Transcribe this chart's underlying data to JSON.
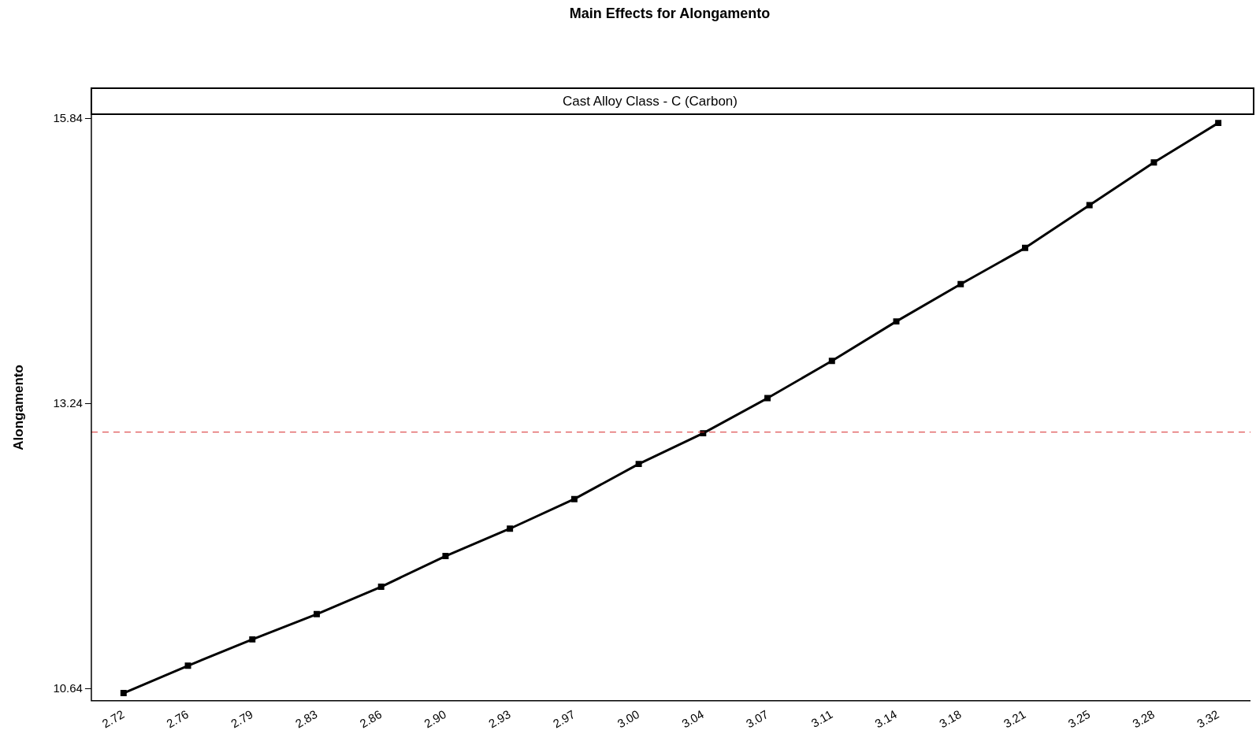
{
  "chart_data": {
    "type": "line",
    "title": "Main Effects for Alongamento",
    "subtitle": "Cast Alloy Class - C (Carbon)",
    "ylabel": "Alongamento",
    "categories": [
      "2.72",
      "2.76",
      "2.79",
      "2.83",
      "2.86",
      "2.90",
      "2.93",
      "2.97",
      "3.00",
      "3.04",
      "3.07",
      "3.11",
      "3.14",
      "3.18",
      "3.21",
      "3.25",
      "3.28",
      "3.32"
    ],
    "series": [
      {
        "color": "#000000",
        "values": [
          10.6,
          10.85,
          11.09,
          11.32,
          11.57,
          11.85,
          12.1,
          12.37,
          12.69,
          12.97,
          13.29,
          13.63,
          13.99,
          14.33,
          14.66,
          15.05,
          15.44,
          15.8
        ]
      }
    ],
    "ylim": [
      10.53,
      15.88
    ],
    "yticks": [
      10.64,
      13.24,
      15.84
    ],
    "ref_lines": [
      {
        "axis": "y",
        "value": 12.98,
        "color": "#d62728",
        "line_style": "dashed"
      }
    ],
    "marker": "square",
    "line_style": "solid",
    "grid": false,
    "legend": false
  }
}
